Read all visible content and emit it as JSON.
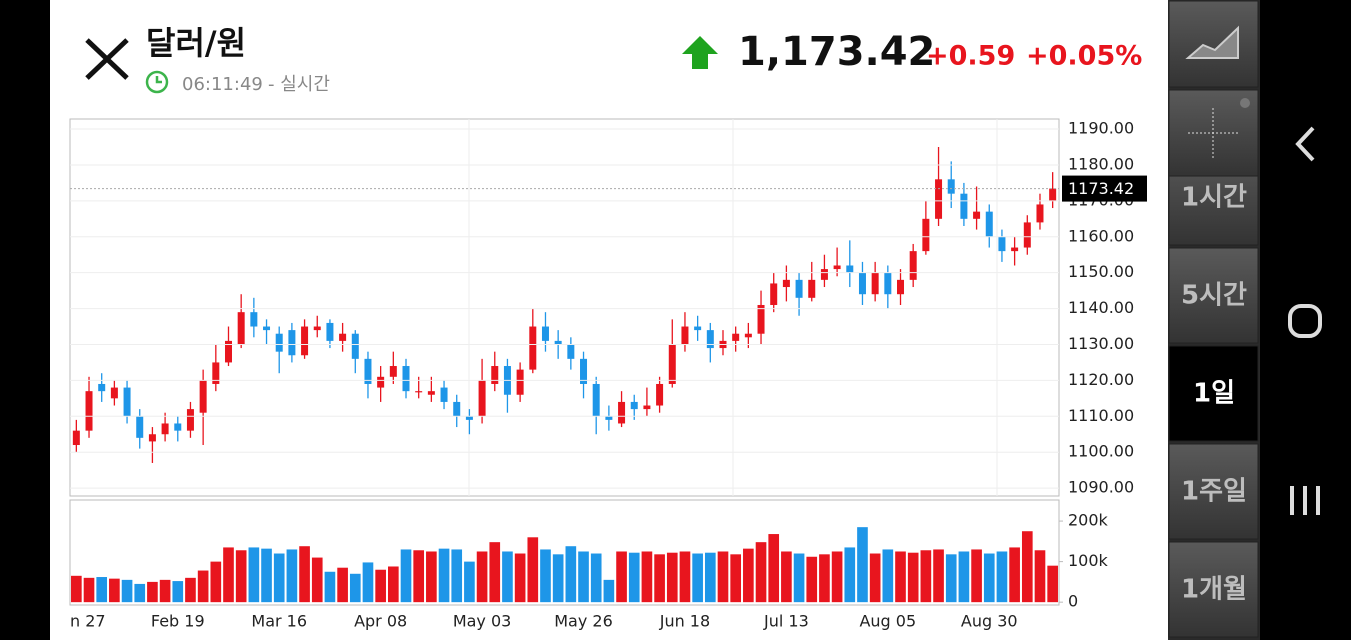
{
  "header": {
    "title": "달러/원",
    "time": "06:11:49",
    "status": "- 실시간",
    "price": "1,173.42",
    "change": "+0.59",
    "change_pct": "+0.05%"
  },
  "menu": {
    "items": [
      "1시간",
      "5시간",
      "1일",
      "1주일",
      "1개월"
    ],
    "selected": "1일"
  },
  "chart_data": {
    "type": "candlestick",
    "up_color": "#e8151e",
    "down_color": "#1e96e8",
    "grid": true,
    "categories": [
      "n 27",
      null,
      null,
      null,
      null,
      null,
      null,
      null,
      "Feb 19",
      null,
      null,
      null,
      null,
      null,
      null,
      null,
      "Mar 16",
      null,
      null,
      null,
      null,
      null,
      null,
      null,
      "Apr 08",
      null,
      null,
      null,
      null,
      null,
      null,
      null,
      "May 03",
      null,
      null,
      null,
      null,
      null,
      null,
      null,
      "May 26",
      null,
      null,
      null,
      null,
      null,
      null,
      null,
      "Jun 18",
      null,
      null,
      null,
      null,
      null,
      null,
      null,
      "Jul 13",
      null,
      null,
      null,
      null,
      null,
      null,
      null,
      "Aug 05",
      null,
      null,
      null,
      null,
      null,
      null,
      null,
      "Aug 30",
      null,
      null,
      null,
      null,
      null
    ],
    "open": [
      1102,
      1106,
      1119,
      1115,
      1118,
      1110,
      1103,
      1105,
      1108,
      1106,
      1111,
      1119,
      1125,
      1130,
      1139,
      1135,
      1133,
      1134,
      1127,
      1134,
      1136,
      1131,
      1133,
      1126,
      1118,
      1121,
      1124,
      1117,
      1116,
      1118,
      1114,
      1110,
      1110,
      1119,
      1124,
      1116,
      1123,
      1135,
      1131,
      1130,
      1126,
      1119,
      1110,
      1108,
      1114,
      1112,
      1113,
      1119,
      1130,
      1135,
      1134,
      1129,
      1131,
      1132,
      1133,
      1141,
      1146,
      1148,
      1143,
      1148,
      1151,
      1152,
      1150,
      1144,
      1150,
      1144,
      1148,
      1156,
      1165,
      1176,
      1172,
      1165,
      1167,
      1160,
      1156,
      1157,
      1164,
      1170
    ],
    "high": [
      1109,
      1121,
      1122,
      1120,
      1120,
      1112,
      1107,
      1111,
      1110,
      1114,
      1123,
      1130,
      1135,
      1144,
      1143,
      1137,
      1135,
      1136,
      1137,
      1138,
      1137,
      1136,
      1134,
      1128,
      1124,
      1128,
      1126,
      1121,
      1121,
      1120,
      1116,
      1112,
      1126,
      1128,
      1126,
      1125,
      1140,
      1139,
      1134,
      1132,
      1128,
      1121,
      1113,
      1117,
      1116,
      1118,
      1121,
      1137,
      1139,
      1138,
      1136,
      1134,
      1135,
      1136,
      1145,
      1150,
      1152,
      1150,
      1153,
      1155,
      1157,
      1159,
      1153,
      1153,
      1152,
      1151,
      1158,
      1170,
      1185,
      1181,
      1175,
      1174,
      1169,
      1162,
      1160,
      1166,
      1172,
      1178
    ],
    "low": [
      1100,
      1104,
      1114,
      1113,
      1108,
      1101,
      1097,
      1103,
      1103,
      1104,
      1102,
      1117,
      1124,
      1129,
      1132,
      1130,
      1122,
      1125,
      1126,
      1132,
      1129,
      1128,
      1122,
      1115,
      1114,
      1119,
      1115,
      1115,
      1114,
      1112,
      1107,
      1105,
      1108,
      1117,
      1111,
      1114,
      1122,
      1128,
      1126,
      1123,
      1115,
      1105,
      1106,
      1107,
      1109,
      1110,
      1111,
      1118,
      1128,
      1131,
      1125,
      1127,
      1128,
      1129,
      1130,
      1139,
      1142,
      1138,
      1142,
      1146,
      1149,
      1146,
      1141,
      1142,
      1140,
      1141,
      1146,
      1155,
      1163,
      1168,
      1163,
      1162,
      1157,
      1153,
      1152,
      1155,
      1162,
      1168
    ],
    "close": [
      1106,
      1117,
      1117,
      1118,
      1110,
      1104,
      1105,
      1108,
      1106,
      1112,
      1120,
      1125,
      1131,
      1139,
      1135,
      1134,
      1128,
      1127,
      1135,
      1135,
      1131,
      1133,
      1126,
      1119,
      1121,
      1124,
      1117,
      1117,
      1117,
      1114,
      1110,
      1109,
      1120,
      1124,
      1116,
      1123,
      1135,
      1131,
      1130,
      1126,
      1119,
      1110,
      1109,
      1114,
      1112,
      1113,
      1119,
      1130,
      1135,
      1134,
      1129,
      1131,
      1133,
      1133,
      1141,
      1147,
      1148,
      1143,
      1148,
      1151,
      1152,
      1150,
      1144,
      1150,
      1144,
      1148,
      1156,
      1165,
      1176,
      1172,
      1165,
      1167,
      1160,
      1156,
      1157,
      1164,
      1169,
      1173.42
    ],
    "ylim": [
      1087.8,
      1192.8
    ],
    "yticks": [
      {
        "value": 1090,
        "label": "1090.00"
      },
      {
        "value": 1100,
        "label": "1100.00"
      },
      {
        "value": 1110,
        "label": "1110.00"
      },
      {
        "value": 1120,
        "label": "1120.00"
      },
      {
        "value": 1130,
        "label": "1130.00"
      },
      {
        "value": 1140,
        "label": "1140.00"
      },
      {
        "value": 1150,
        "label": "1150.00"
      },
      {
        "value": 1160,
        "label": "1160.00"
      },
      {
        "value": 1170,
        "label": "1170.00"
      },
      {
        "value": 1180,
        "label": "1180.00"
      },
      {
        "value": 1190,
        "label": "1190.00"
      }
    ],
    "volume": {
      "values": [
        65000,
        60000,
        62000,
        58000,
        55000,
        45000,
        50000,
        55000,
        52000,
        60000,
        78000,
        100000,
        135000,
        128000,
        135000,
        132000,
        120000,
        130000,
        138000,
        110000,
        75000,
        85000,
        70000,
        98000,
        80000,
        88000,
        130000,
        128000,
        125000,
        132000,
        130000,
        100000,
        125000,
        148000,
        125000,
        120000,
        160000,
        130000,
        118000,
        138000,
        125000,
        120000,
        55000,
        125000,
        122000,
        125000,
        118000,
        122000,
        125000,
        120000,
        122000,
        125000,
        118000,
        132000,
        148000,
        168000,
        125000,
        120000,
        112000,
        118000,
        125000,
        135000,
        185000,
        120000,
        130000,
        125000,
        122000,
        128000,
        130000,
        118000,
        125000,
        130000,
        120000,
        125000,
        135000,
        175000,
        128000,
        90000
      ],
      "ylim": [
        -7000,
        252000
      ],
      "yticks": [
        0,
        {
          "value": 100000,
          "label": "100k"
        },
        {
          "value": 200000,
          "label": "200k"
        }
      ]
    }
  }
}
